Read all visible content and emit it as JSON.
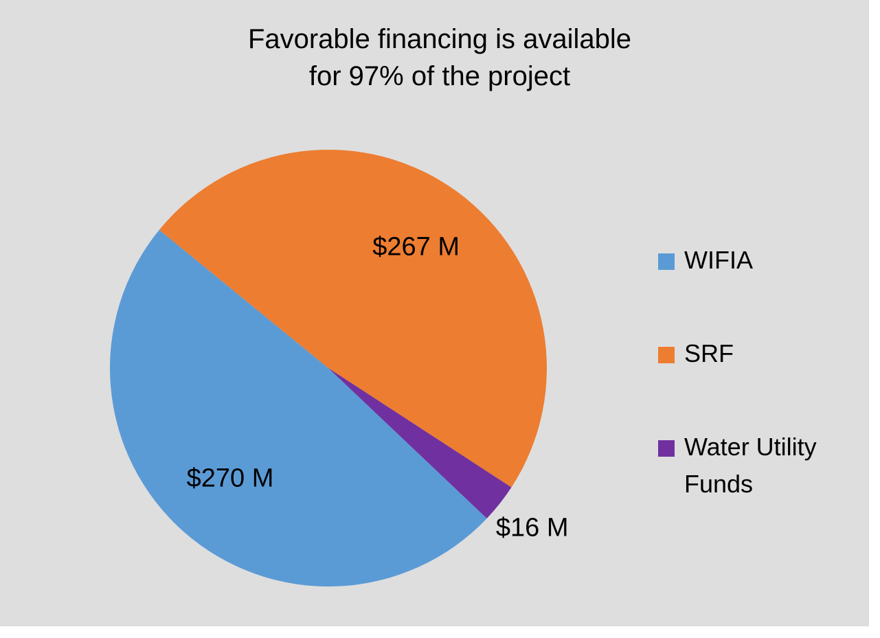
{
  "chart_data": {
    "type": "pie",
    "title": [
      "Favorable financing is available",
      "for 97% of the project"
    ],
    "categories": [
      "WIFIA",
      "SRF",
      "Water Utility Funds"
    ],
    "values": [
      270,
      267,
      16
    ],
    "value_labels": [
      "$270 M",
      "$267 M",
      "$16 M"
    ],
    "colors": [
      "#5b9bd5",
      "#ed7d31",
      "#7030a0"
    ],
    "legend": "right"
  }
}
